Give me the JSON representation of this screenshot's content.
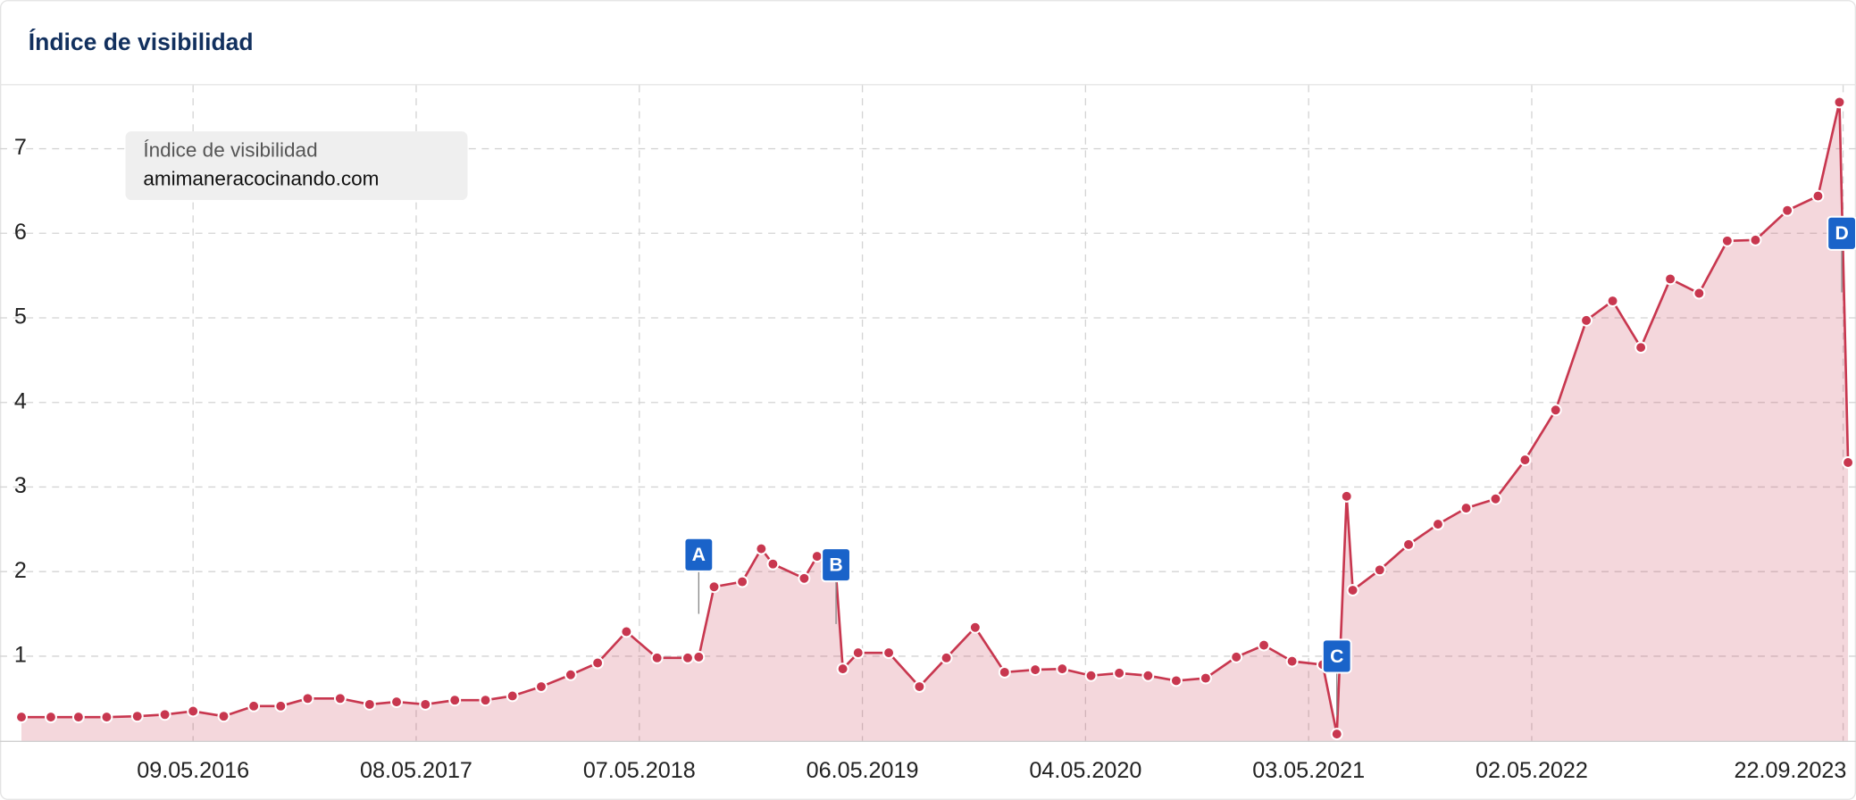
{
  "chart_data": {
    "type": "area",
    "title": "Índice de visibilidad",
    "legend_title": "Índice de visibilidad",
    "x": [
      "03.08.2015",
      "20.09.2015",
      "04.11.2015",
      "20.12.2015",
      "08.02.2016",
      "24.03.2016",
      "09.05.2016",
      "28.06.2016",
      "16.08.2016",
      "29.09.2016",
      "12.11.2016",
      "04.01.2017",
      "21.02.2017",
      "06.04.2017",
      "23.05.2017",
      "10.07.2017",
      "29.08.2017",
      "12.10.2017",
      "28.11.2017",
      "15.01.2018",
      "28.02.2018",
      "16.04.2018",
      "05.06.2018",
      "25.07.2018",
      "12.08.2018",
      "06.09.2018",
      "22.10.2018",
      "22.11.2018",
      "11.12.2018",
      "31.01.2019",
      "21.02.2019",
      "24.03.2019",
      "04.04.2019",
      "29.04.2019",
      "18.06.2019",
      "07.08.2019",
      "20.09.2019",
      "06.11.2019",
      "24.12.2019",
      "12.02.2020",
      "27.03.2020",
      "13.05.2020",
      "28.06.2020",
      "14.08.2020",
      "29.09.2020",
      "16.11.2020",
      "05.01.2021",
      "19.02.2021",
      "06.04.2021",
      "26.05.2021",
      "18.06.2021",
      "04.07.2021",
      "14.07.2021",
      "27.08.2021",
      "13.10.2021",
      "30.11.2021",
      "15.01.2022",
      "04.03.2022",
      "21.04.2022",
      "10.06.2022",
      "30.07.2022",
      "11.09.2022",
      "27.10.2022",
      "14.12.2022",
      "30.01.2023",
      "17.03.2023",
      "02.05.2023",
      "23.06.2023",
      "12.08.2023",
      "16.09.2023",
      "30.09.2023"
    ],
    "series": [
      {
        "name": "amimaneracocinando.com",
        "color": "#c8374f",
        "values": [
          0.28,
          0.28,
          0.28,
          0.28,
          0.29,
          0.31,
          0.35,
          0.29,
          0.41,
          0.41,
          0.5,
          0.5,
          0.43,
          0.46,
          0.43,
          0.48,
          0.48,
          0.53,
          0.64,
          0.78,
          0.92,
          1.29,
          0.98,
          0.98,
          0.99,
          1.82,
          1.88,
          2.27,
          2.09,
          1.92,
          2.18,
          1.96,
          0.85,
          1.04,
          1.04,
          0.64,
          0.98,
          1.34,
          0.81,
          0.84,
          0.85,
          0.77,
          0.8,
          0.77,
          0.71,
          0.74,
          0.99,
          1.13,
          0.94,
          0.9,
          0.08,
          2.89,
          1.78,
          2.02,
          2.32,
          2.56,
          2.75,
          2.86,
          3.32,
          3.91,
          4.97,
          5.2,
          4.65,
          5.46,
          5.29,
          5.91,
          5.92,
          6.27,
          6.44,
          7.55,
          3.29
        ]
      }
    ],
    "events": [
      {
        "label": "A",
        "x": "12.08.2018",
        "y": 2.2
      },
      {
        "label": "B",
        "x": "24.03.2019",
        "y": 2.08
      },
      {
        "label": "C",
        "x": "18.06.2021",
        "y": 1.0
      },
      {
        "label": "D",
        "x": "30.09.2023",
        "y": 6.0
      }
    ],
    "xlim": [
      "29.06.2015",
      "13.10.2023"
    ],
    "xticks": [
      "09.05.2016",
      "08.05.2017",
      "07.05.2018",
      "06.05.2019",
      "04.05.2020",
      "03.05.2021",
      "02.05.2022",
      "22.09.2023"
    ],
    "ylim": [
      0,
      7.75
    ],
    "yticks": [
      1,
      2,
      3,
      4,
      5,
      6,
      7
    ],
    "grid": true
  }
}
